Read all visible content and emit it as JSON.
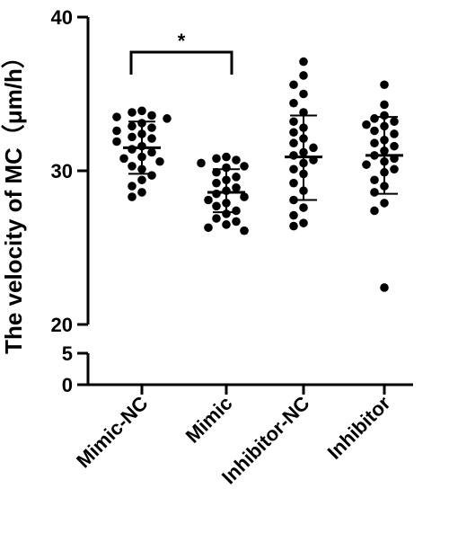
{
  "chart_data": {
    "type": "scatter",
    "ylabel": "The velocity of MC（μm/h）",
    "y_axis": {
      "broken": true,
      "lower_segment": {
        "range": [
          0,
          5
        ],
        "ticks": [
          "0",
          "5"
        ]
      },
      "upper_segment": {
        "range": [
          20,
          40
        ],
        "ticks": [
          "20",
          "30",
          "40"
        ]
      }
    },
    "categories": [
      "Mimic-NC",
      "Mimic",
      "Inhibitor-NC",
      "Inhibitor"
    ],
    "series": [
      {
        "category": "Mimic-NC",
        "mean": 31.5,
        "sd_low": 29.8,
        "sd_high": 33.2,
        "values": [
          33.9,
          33.8,
          33.6,
          33.5,
          33.4,
          33.1,
          32.9,
          32.8,
          32.6,
          32.4,
          32.2,
          32.1,
          31.9,
          31.6,
          31.4,
          31.2,
          30.9,
          30.8,
          30.6,
          30.3,
          30.1,
          29.7,
          29.4,
          29.0,
          28.6,
          28.3
        ]
      },
      {
        "category": "Mimic",
        "mean": 28.6,
        "sd_low": 27.3,
        "sd_high": 30.1,
        "values": [
          30.9,
          30.8,
          30.7,
          30.5,
          30.3,
          30.2,
          29.9,
          29.6,
          29.4,
          29.2,
          28.9,
          28.7,
          28.5,
          28.3,
          28.1,
          27.9,
          27.7,
          27.4,
          27.2,
          26.9,
          26.7,
          26.5,
          26.3,
          26.1
        ]
      },
      {
        "category": "Inhibitor-NC",
        "mean": 30.9,
        "sd_low": 28.1,
        "sd_high": 33.6,
        "values": [
          37.1,
          36.2,
          35.6,
          35.0,
          34.4,
          33.8,
          33.2,
          32.8,
          32.5,
          32.1,
          31.8,
          31.5,
          31.2,
          31.0,
          30.7,
          30.5,
          30.1,
          29.8,
          29.2,
          28.7,
          28.1,
          27.6,
          27.1,
          26.6,
          26.4
        ]
      },
      {
        "category": "Inhibitor",
        "mean": 31.0,
        "sd_low": 28.5,
        "sd_high": 33.5,
        "values": [
          35.6,
          34.3,
          33.6,
          33.4,
          33.2,
          33.0,
          32.9,
          32.6,
          32.4,
          32.0,
          31.8,
          31.6,
          31.3,
          31.0,
          30.8,
          30.6,
          30.4,
          30.1,
          29.9,
          29.4,
          29.0,
          28.6,
          27.9,
          27.4,
          22.4
        ]
      }
    ],
    "significance": [
      {
        "from": "Mimic-NC",
        "to": "Mimic",
        "label": "*"
      }
    ],
    "legend": "none",
    "grid": false
  }
}
